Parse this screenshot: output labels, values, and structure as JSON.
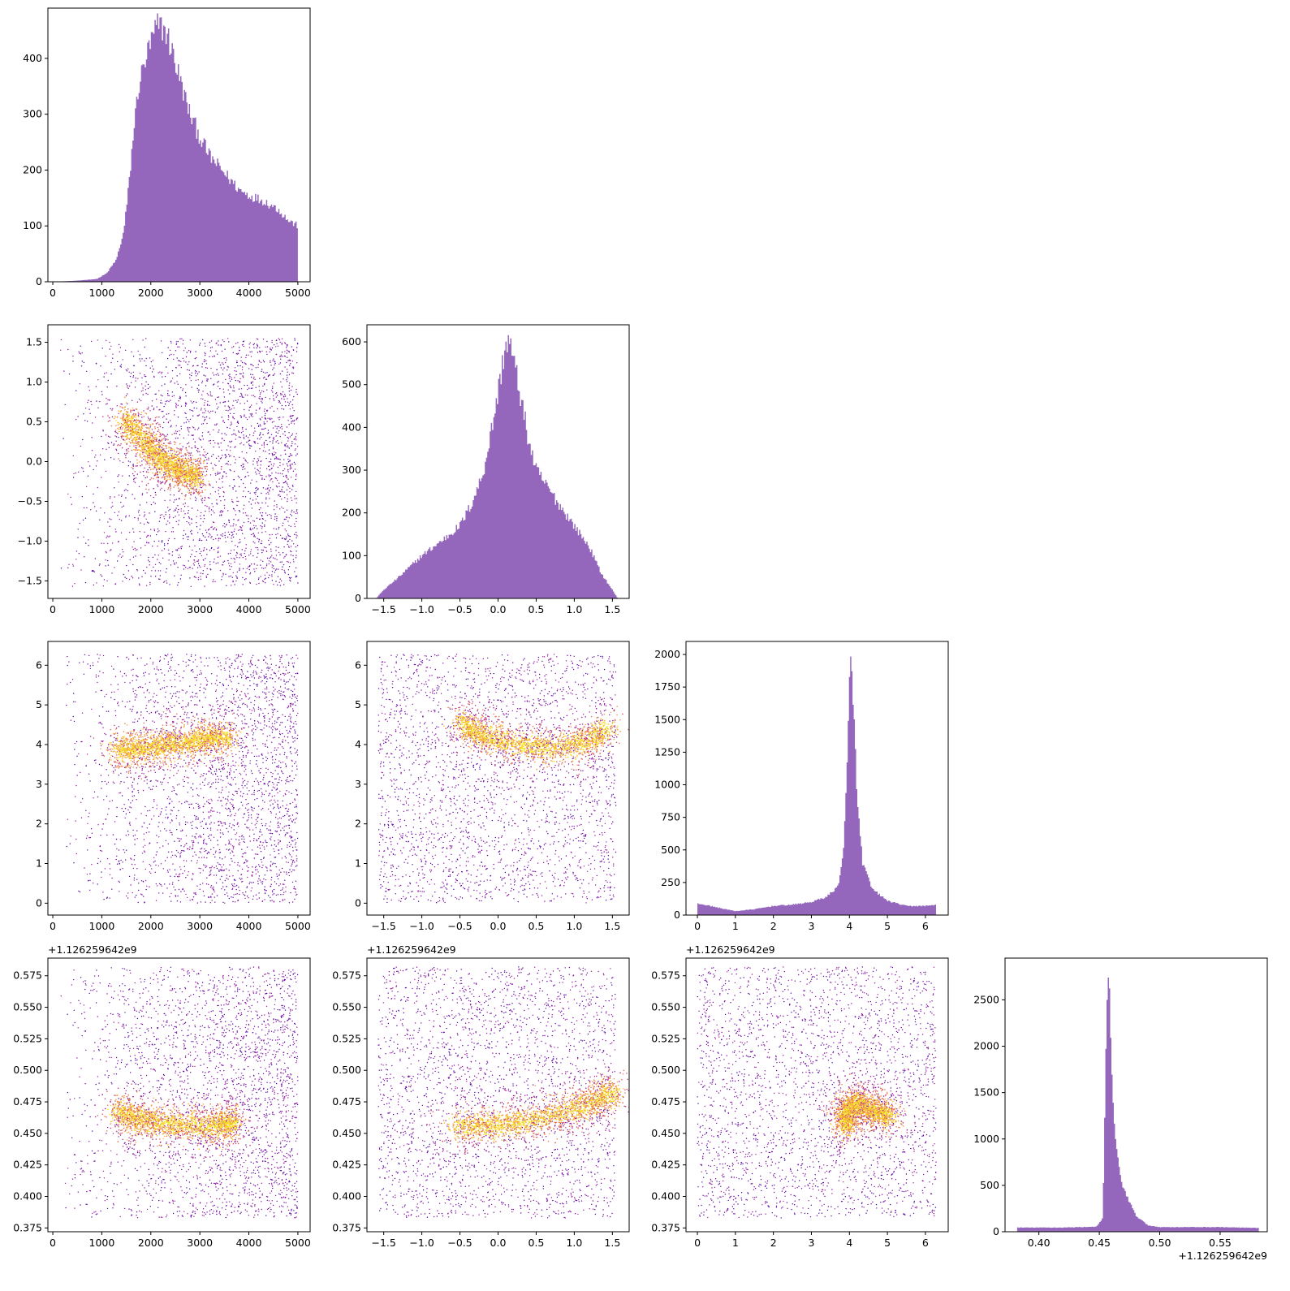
{
  "chart_data": {
    "type": "corner",
    "parameters": [
      "p0",
      "p1",
      "p2",
      "p3"
    ],
    "colors": {
      "hist": "#9467bd",
      "colormap": [
        "#3a049a",
        "#7e03a8",
        "#b12a90",
        "#d8576b",
        "#f48849",
        "#fdc328",
        "#f0f921"
      ]
    },
    "axis_ticks": {
      "p0": [
        0,
        1000,
        2000,
        3000,
        4000,
        5000
      ],
      "p1": [
        -1.5,
        -1.0,
        -0.5,
        0.0,
        0.5,
        1.0,
        1.5
      ],
      "p2": [
        0,
        1,
        2,
        3,
        4,
        5,
        6
      ],
      "p3": [
        0.375,
        0.4,
        0.425,
        0.45,
        0.475,
        0.5,
        0.525,
        0.55,
        0.575
      ],
      "p3_hist": [
        0.4,
        0.45,
        0.5,
        0.55
      ]
    },
    "offset_text": "+1.126259642e9",
    "diagonals": [
      {
        "param": "p0",
        "type": "histogram",
        "xlim": [
          -100,
          5250
        ],
        "ylim": [
          0,
          490
        ],
        "yticks": [
          0,
          100,
          200,
          300,
          400
        ],
        "profile": [
          [
            0,
            0
          ],
          [
            500,
            2
          ],
          [
            900,
            5
          ],
          [
            1100,
            15
          ],
          [
            1300,
            40
          ],
          [
            1450,
            90
          ],
          [
            1550,
            170
          ],
          [
            1650,
            270
          ],
          [
            1750,
            350
          ],
          [
            1900,
            400
          ],
          [
            2050,
            440
          ],
          [
            2150,
            460
          ],
          [
            2300,
            450
          ],
          [
            2450,
            410
          ],
          [
            2600,
            360
          ],
          [
            2800,
            300
          ],
          [
            3000,
            260
          ],
          [
            3200,
            225
          ],
          [
            3400,
            205
          ],
          [
            3600,
            185
          ],
          [
            3800,
            165
          ],
          [
            4000,
            155
          ],
          [
            4300,
            145
          ],
          [
            4600,
            130
          ],
          [
            4800,
            110
          ],
          [
            5000,
            100
          ]
        ]
      },
      {
        "param": "p1",
        "type": "histogram",
        "xlim": [
          -1.72,
          1.72
        ],
        "ylim": [
          0,
          640
        ],
        "yticks": [
          0,
          100,
          200,
          300,
          400,
          500,
          600
        ],
        "profile": [
          [
            -1.6,
            0
          ],
          [
            -1.5,
            20
          ],
          [
            -1.3,
            50
          ],
          [
            -1.0,
            100
          ],
          [
            -0.7,
            140
          ],
          [
            -0.5,
            170
          ],
          [
            -0.35,
            220
          ],
          [
            -0.2,
            290
          ],
          [
            -0.1,
            380
          ],
          [
            0.0,
            480
          ],
          [
            0.05,
            540
          ],
          [
            0.1,
            595
          ],
          [
            0.15,
            600
          ],
          [
            0.2,
            560
          ],
          [
            0.3,
            470
          ],
          [
            0.4,
            370
          ],
          [
            0.5,
            300
          ],
          [
            0.65,
            260
          ],
          [
            0.8,
            220
          ],
          [
            1.0,
            170
          ],
          [
            1.2,
            120
          ],
          [
            1.35,
            60
          ],
          [
            1.5,
            20
          ],
          [
            1.57,
            0
          ]
        ]
      },
      {
        "param": "p2",
        "type": "histogram",
        "xlim": [
          -0.3,
          6.6
        ],
        "ylim": [
          0,
          2100
        ],
        "yticks": [
          0,
          250,
          500,
          750,
          1000,
          1250,
          1500,
          1750,
          2000
        ],
        "yticklabels": [
          "0",
          "250",
          "500",
          "750",
          "1000",
          "1250",
          "1500",
          "1750",
          "2000"
        ],
        "profile": [
          [
            0.0,
            90
          ],
          [
            0.5,
            60
          ],
          [
            1.0,
            30
          ],
          [
            1.5,
            45
          ],
          [
            2.0,
            70
          ],
          [
            2.5,
            80
          ],
          [
            3.0,
            100
          ],
          [
            3.4,
            140
          ],
          [
            3.7,
            220
          ],
          [
            3.85,
            500
          ],
          [
            3.95,
            1200
          ],
          [
            4.0,
            1750
          ],
          [
            4.05,
            2000
          ],
          [
            4.1,
            1700
          ],
          [
            4.2,
            900
          ],
          [
            4.35,
            400
          ],
          [
            4.6,
            200
          ],
          [
            5.0,
            110
          ],
          [
            5.5,
            70
          ],
          [
            6.0,
            70
          ],
          [
            6.28,
            80
          ]
        ]
      },
      {
        "param": "p3",
        "type": "histogram",
        "xlim": [
          0.372,
          0.589
        ],
        "ylim": [
          0,
          2950
        ],
        "yticks": [
          0,
          500,
          1000,
          1500,
          2000,
          2500
        ],
        "profile": [
          [
            0.382,
            45
          ],
          [
            0.42,
            45
          ],
          [
            0.448,
            55
          ],
          [
            0.453,
            150
          ],
          [
            0.455,
            1600
          ],
          [
            0.457,
            2750
          ],
          [
            0.459,
            2400
          ],
          [
            0.461,
            1500
          ],
          [
            0.464,
            900
          ],
          [
            0.468,
            550
          ],
          [
            0.474,
            350
          ],
          [
            0.48,
            180
          ],
          [
            0.49,
            70
          ],
          [
            0.5,
            50
          ],
          [
            0.55,
            50
          ],
          [
            0.582,
            40
          ]
        ]
      }
    ],
    "scatter_panels": [
      {
        "x": "p0",
        "y": "p1",
        "xlim": [
          -100,
          5250
        ],
        "ylim": [
          -1.72,
          1.72
        ],
        "density_ridge": [
          [
            1450,
            0.55
          ],
          [
            1800,
            0.3
          ],
          [
            2100,
            0.1
          ],
          [
            2400,
            -0.05
          ],
          [
            2750,
            -0.15
          ],
          [
            2950,
            -0.2
          ]
        ],
        "x_range": [
          100,
          5000
        ],
        "y_range": [
          -1.57,
          1.55
        ]
      },
      {
        "x": "p0",
        "y": "p2",
        "xlim": [
          -100,
          5250
        ],
        "ylim": [
          -0.3,
          6.6
        ],
        "density_ridge": [
          [
            1300,
            3.85
          ],
          [
            1700,
            3.88
          ],
          [
            2200,
            3.95
          ],
          [
            2700,
            4.05
          ],
          [
            3200,
            4.15
          ],
          [
            3600,
            4.2
          ]
        ],
        "x_range": [
          100,
          5000
        ],
        "y_range": [
          0,
          6.28
        ]
      },
      {
        "x": "p1",
        "y": "p2",
        "xlim": [
          -1.72,
          1.72
        ],
        "ylim": [
          -0.3,
          6.6
        ],
        "density_ridge": [
          [
            -0.5,
            4.6
          ],
          [
            -0.3,
            4.3
          ],
          [
            0.0,
            4.1
          ],
          [
            0.4,
            3.95
          ],
          [
            0.8,
            3.9
          ],
          [
            1.2,
            4.1
          ],
          [
            1.45,
            4.4
          ]
        ],
        "x_range": [
          -1.57,
          1.55
        ],
        "y_range": [
          0,
          6.28
        ]
      },
      {
        "x": "p0",
        "y": "p3",
        "xlim": [
          -100,
          5250
        ],
        "ylim": [
          0.372,
          0.589
        ],
        "density_ridge": [
          [
            1300,
            0.468
          ],
          [
            1700,
            0.462
          ],
          [
            2200,
            0.458
          ],
          [
            2800,
            0.457
          ],
          [
            3400,
            0.457
          ],
          [
            3700,
            0.458
          ]
        ],
        "x_range": [
          100,
          5000
        ],
        "y_range": [
          0.383,
          0.582
        ]
      },
      {
        "x": "p1",
        "y": "p3",
        "xlim": [
          -1.72,
          1.72
        ],
        "ylim": [
          0.372,
          0.589
        ],
        "density_ridge": [
          [
            -0.6,
            0.455
          ],
          [
            -0.2,
            0.456
          ],
          [
            0.2,
            0.458
          ],
          [
            0.6,
            0.462
          ],
          [
            1.0,
            0.47
          ],
          [
            1.3,
            0.477
          ],
          [
            1.55,
            0.483
          ]
        ],
        "x_range": [
          -1.57,
          1.55
        ],
        "y_range": [
          0.383,
          0.582
        ]
      },
      {
        "x": "p2",
        "y": "p3",
        "xlim": [
          -0.3,
          6.6
        ],
        "ylim": [
          0.372,
          0.589
        ],
        "density_ridge": [
          [
            3.95,
            0.455
          ],
          [
            3.9,
            0.462
          ],
          [
            3.95,
            0.47
          ],
          [
            4.2,
            0.474
          ],
          [
            4.5,
            0.47
          ],
          [
            4.8,
            0.466
          ],
          [
            5.1,
            0.463
          ]
        ],
        "x_range": [
          0,
          6.28
        ],
        "y_range": [
          0.383,
          0.582
        ]
      }
    ]
  }
}
